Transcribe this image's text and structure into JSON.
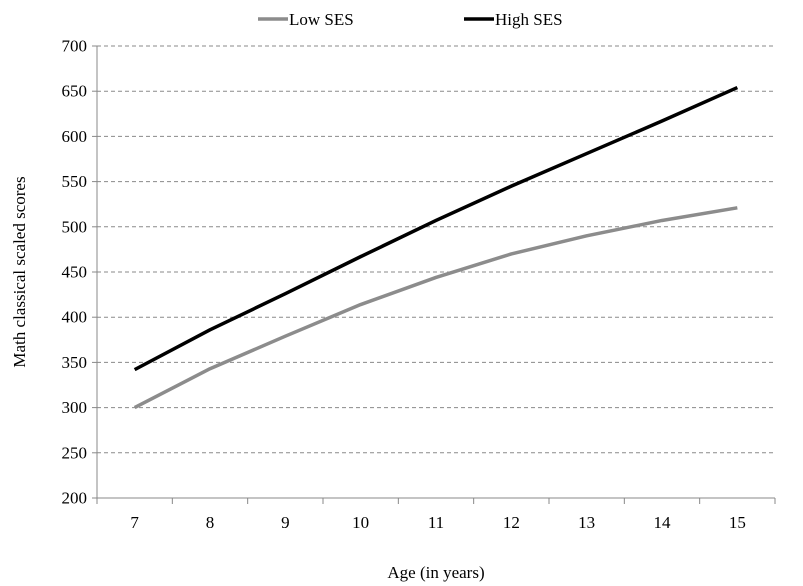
{
  "chart_data": {
    "type": "line",
    "title": "",
    "xlabel": "Age (in years)",
    "ylabel": "Math classical  scaled  scores",
    "categories": [
      "7",
      "8",
      "9",
      "10",
      "11",
      "12",
      "13",
      "14",
      "15"
    ],
    "ylim": [
      200,
      700
    ],
    "yticks": [
      200,
      250,
      300,
      350,
      400,
      450,
      500,
      550,
      600,
      650,
      700
    ],
    "grid": "horizontal dashed",
    "legend_position": "top",
    "series": [
      {
        "name": "Low SES",
        "color": "#8c8c8c",
        "values": [
          300,
          343,
          379,
          414,
          444,
          470,
          490,
          507,
          521
        ]
      },
      {
        "name": "High SES",
        "color": "#000000",
        "values": [
          342,
          386,
          426,
          467,
          507,
          545,
          581,
          617,
          654
        ]
      }
    ]
  }
}
